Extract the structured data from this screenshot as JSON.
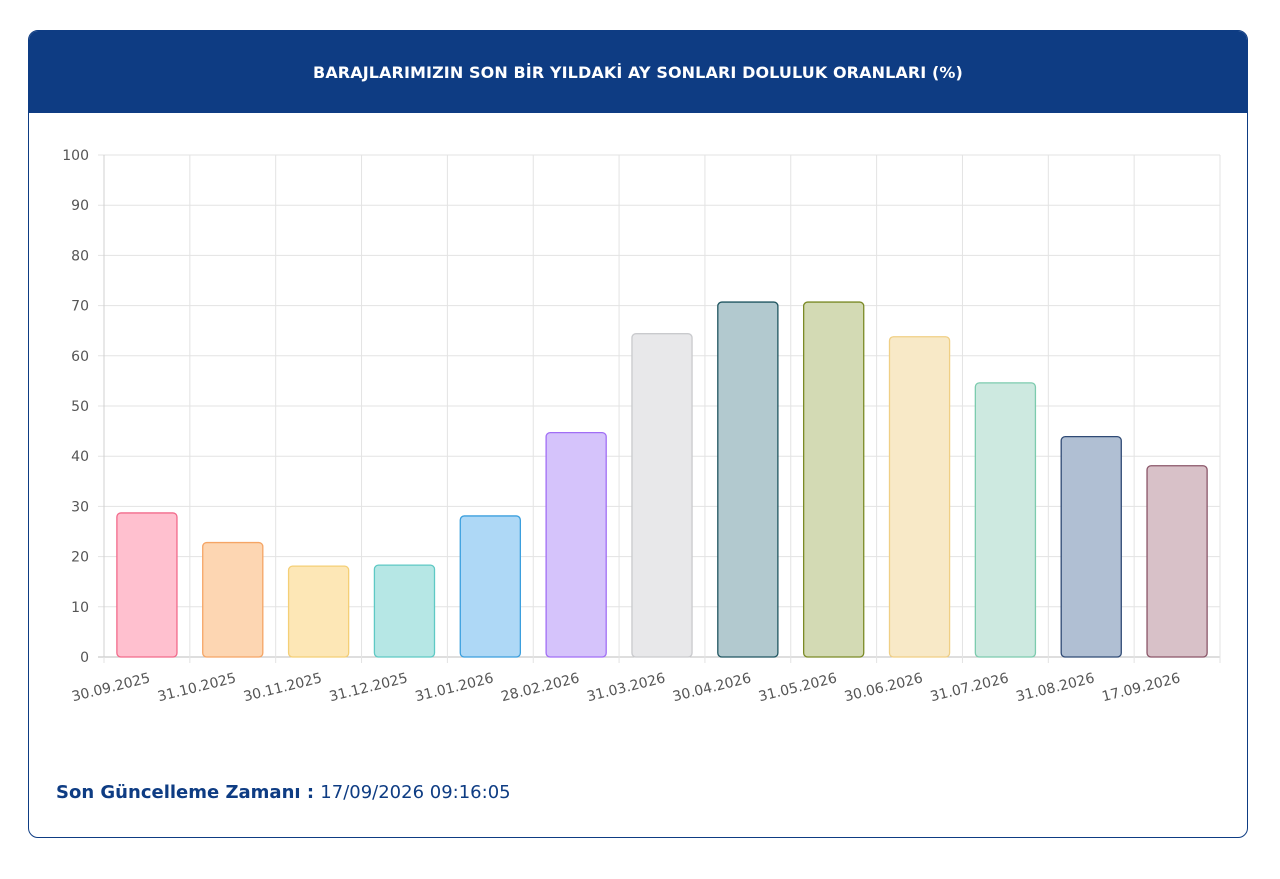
{
  "header": {
    "title": "BARAJLARIMIZIN SON BİR YILDAKİ AY SONLARI DOLULUK ORANLARI (%)"
  },
  "footer": {
    "update_label": "Son Güncelleme Zamanı",
    "separator": " : ",
    "update_value": "17/09/2026 09:16:05"
  },
  "chart_data": {
    "type": "bar",
    "categories": [
      "30.09.2025",
      "31.10.2025",
      "30.11.2025",
      "31.12.2025",
      "31.01.2026",
      "28.02.2026",
      "31.03.2026",
      "30.04.2026",
      "31.05.2026",
      "30.06.2026",
      "31.07.2026",
      "31.08.2026",
      "17.09.2026"
    ],
    "values": [
      28.7,
      22.8,
      18.1,
      18.3,
      28.1,
      44.7,
      64.4,
      70.7,
      70.7,
      63.8,
      54.6,
      43.9,
      38.1
    ],
    "title": "BARAJLARIMIZIN SON BİR YILDAKİ AY SONLARI DOLULUK ORANLARI (%)",
    "xlabel": "",
    "ylabel": "",
    "ylim": [
      0,
      100
    ],
    "yticks": [
      0,
      10,
      20,
      30,
      40,
      50,
      60,
      70,
      80,
      90,
      100
    ],
    "grid": true,
    "legend": "none",
    "fill_colors": [
      "#ffc0cf",
      "#fdd6b2",
      "#fde7b6",
      "#b6e7e5",
      "#aed8f6",
      "#d5c3fb",
      "#e8e8ea",
      "#b2c9cf",
      "#d3dab4",
      "#f8e9c7",
      "#cde9e0",
      "#b0bfd3",
      "#d8c1c8"
    ],
    "border_colors": [
      "#f26a8b",
      "#f5a565",
      "#f4cf76",
      "#5ec9c4",
      "#3b9fde",
      "#a16ef5",
      "#c9cacd",
      "#1f5560",
      "#7b8a26",
      "#f0cf85",
      "#7ccbae",
      "#2f4a75",
      "#8a5568"
    ]
  }
}
